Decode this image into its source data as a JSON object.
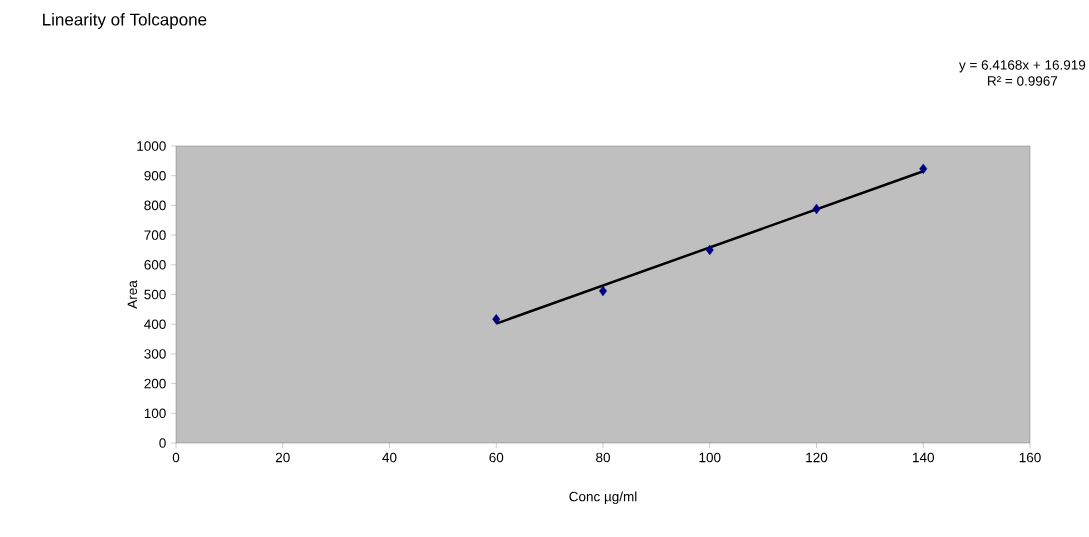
{
  "chart_data": {
    "type": "scatter",
    "title": "Linearity of Tolcapone",
    "xlabel": "Conc µg/ml",
    "ylabel": "Area",
    "xlim": [
      0,
      160
    ],
    "xticks": [
      0,
      20,
      40,
      60,
      80,
      100,
      120,
      140,
      160
    ],
    "ylim": [
      0,
      1000
    ],
    "yticks": [
      0,
      100,
      200,
      300,
      400,
      500,
      600,
      700,
      800,
      900,
      1000
    ],
    "marker": "none",
    "annotations": [
      "y = 6.4168x + 16.919",
      "R² = 0.9967"
    ],
    "series": [
      {
        "color": "#000080",
        "marker": "diamond",
        "x": [
          60,
          80,
          100,
          120,
          140
        ],
        "values": [
          417,
          512,
          650,
          788,
          923
        ]
      },
      {
        "type": "line",
        "color": "#000000",
        "x": [
          60,
          140
        ],
        "values": [
          402,
          915
        ]
      }
    ]
  }
}
